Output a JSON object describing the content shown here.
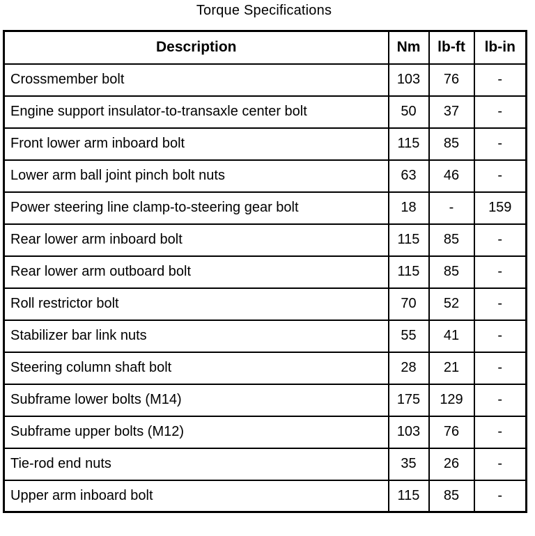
{
  "page": {
    "title": "Torque Specifications"
  },
  "colors": {
    "border": "#000000",
    "background": "#ffffff",
    "text": "#000000"
  },
  "table": {
    "columns": [
      "Description",
      "Nm",
      "lb-ft",
      "lb-in"
    ],
    "rows": [
      {
        "description": "Crossmember bolt",
        "nm": "103",
        "lb_ft": "76",
        "lb_in": "-"
      },
      {
        "description": "Engine support insulator-to-transaxle center bolt",
        "nm": "50",
        "lb_ft": "37",
        "lb_in": "-"
      },
      {
        "description": "Front lower arm inboard bolt",
        "nm": "115",
        "lb_ft": "85",
        "lb_in": "-"
      },
      {
        "description": "Lower arm ball joint pinch bolt nuts",
        "nm": "63",
        "lb_ft": "46",
        "lb_in": "-"
      },
      {
        "description": "Power steering line clamp-to-steering gear bolt",
        "nm": "18",
        "lb_ft": "-",
        "lb_in": "159"
      },
      {
        "description": "Rear lower arm inboard bolt",
        "nm": "115",
        "lb_ft": "85",
        "lb_in": "-"
      },
      {
        "description": "Rear lower arm outboard bolt",
        "nm": "115",
        "lb_ft": "85",
        "lb_in": "-"
      },
      {
        "description": "Roll restrictor bolt",
        "nm": "70",
        "lb_ft": "52",
        "lb_in": "-"
      },
      {
        "description": "Stabilizer bar link nuts",
        "nm": "55",
        "lb_ft": "41",
        "lb_in": "-"
      },
      {
        "description": "Steering column shaft bolt",
        "nm": "28",
        "lb_ft": "21",
        "lb_in": "-"
      },
      {
        "description": "Subframe lower bolts (M14)",
        "nm": "175",
        "lb_ft": "129",
        "lb_in": "-"
      },
      {
        "description": "Subframe upper bolts (M12)",
        "nm": "103",
        "lb_ft": "76",
        "lb_in": "-"
      },
      {
        "description": "Tie-rod end nuts",
        "nm": "35",
        "lb_ft": "26",
        "lb_in": "-"
      },
      {
        "description": "Upper arm inboard bolt",
        "nm": "115",
        "lb_ft": "85",
        "lb_in": "-"
      }
    ]
  }
}
